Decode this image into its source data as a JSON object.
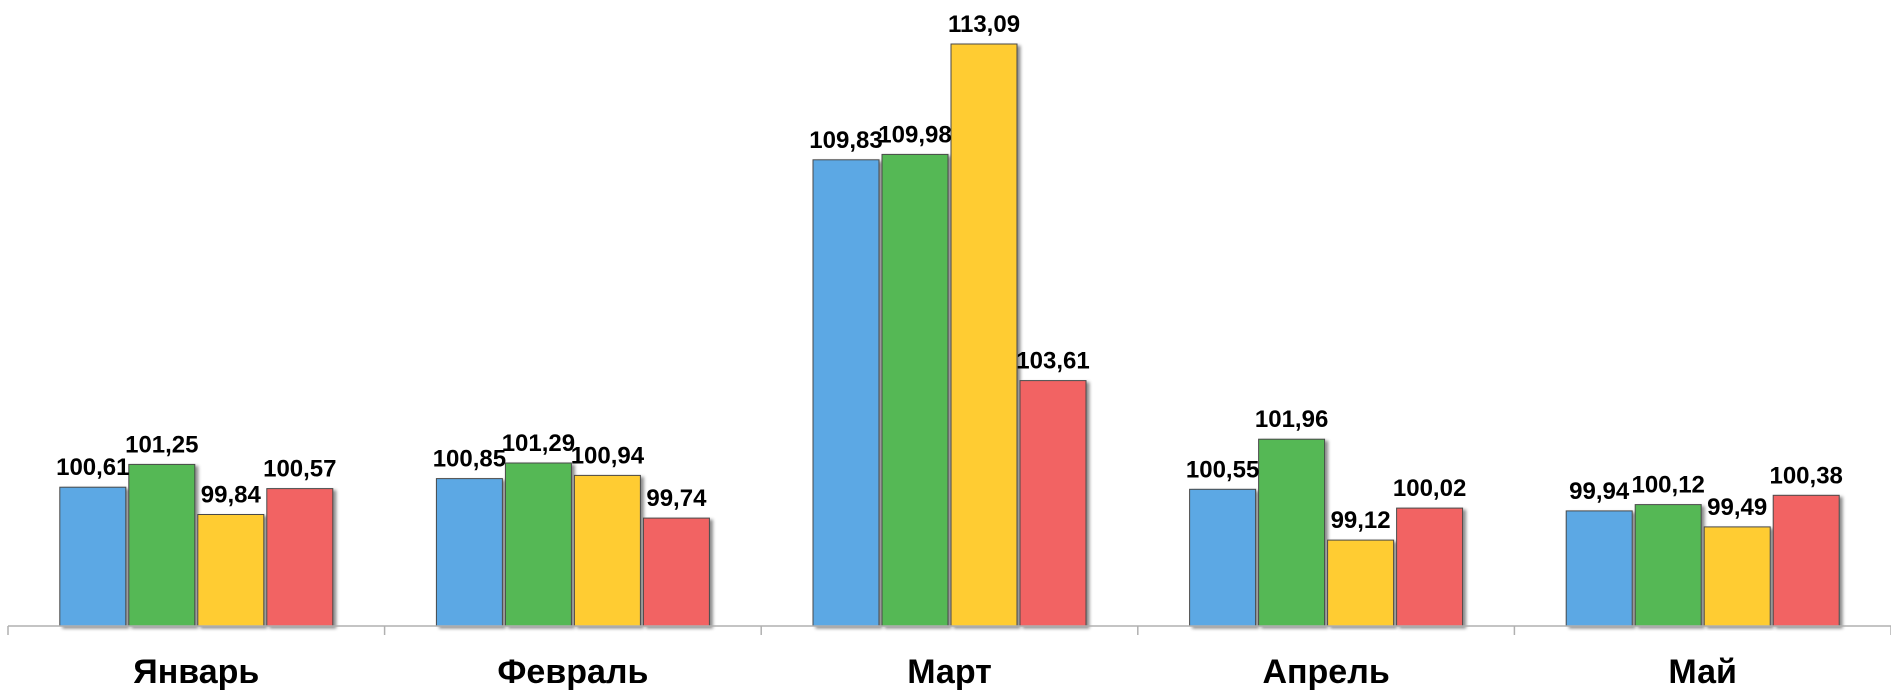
{
  "chart_data": {
    "type": "bar",
    "categories": [
      "Январь",
      "Февраль",
      "Март",
      "Апрель",
      "Май"
    ],
    "series": [
      {
        "color": "#5BA8E4",
        "values": [
          100.61,
          100.85,
          109.83,
          100.55,
          99.94
        ]
      },
      {
        "color": "#55B855",
        "values": [
          101.25,
          101.29,
          109.98,
          101.96,
          100.12
        ]
      },
      {
        "color": "#FFCC33",
        "values": [
          99.84,
          100.94,
          113.09,
          99.12,
          99.49
        ]
      },
      {
        "color": "#F26464",
        "values": [
          100.57,
          99.74,
          103.61,
          100.02,
          100.38
        ]
      }
    ],
    "value_labels": [
      [
        "100,61",
        "100,85",
        "109,83",
        "100,55",
        "99,94"
      ],
      [
        "101,25",
        "101,29",
        "109,98",
        "101,96",
        "100,12"
      ],
      [
        "99,84",
        "100,94",
        "113,09",
        "99,12",
        "99,49"
      ],
      [
        "100,57",
        "99,74",
        "103,61",
        "100,02",
        "100,38"
      ]
    ],
    "ylim": [
      96.7,
      113.09
    ],
    "grid": false,
    "legend": "none",
    "title": "",
    "xlabel": "",
    "ylabel": ""
  }
}
